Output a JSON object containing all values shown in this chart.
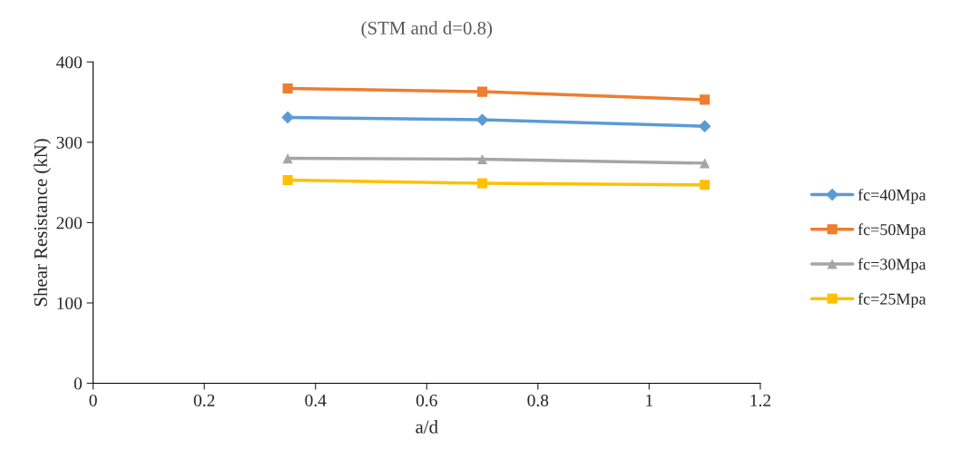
{
  "chart_data": {
    "type": "line",
    "title": "(STM and d=0.8)",
    "xlabel": "a/d",
    "ylabel": "Shear Resistance (kN)",
    "x": [
      0.35,
      0.7,
      1.1
    ],
    "series": [
      {
        "name": "fc=40Mpa",
        "color": "#5b9bd5",
        "marker": "diamond",
        "values": [
          331,
          328,
          320
        ]
      },
      {
        "name": "fc=50Mpa",
        "color": "#ed7d31",
        "marker": "square",
        "values": [
          367,
          363,
          353
        ]
      },
      {
        "name": "fc=30Mpa",
        "color": "#a5a5a5",
        "marker": "triangle",
        "values": [
          280,
          279,
          274
        ]
      },
      {
        "name": "fc=25Mpa",
        "color": "#ffc000",
        "marker": "square",
        "values": [
          253,
          249,
          247
        ]
      }
    ],
    "xlim": [
      0,
      1.2
    ],
    "xticks": [
      0,
      0.2,
      0.4,
      0.6,
      0.8,
      1,
      1.2
    ],
    "ylim": [
      0,
      400
    ],
    "yticks": [
      0,
      100,
      200,
      300,
      400
    ],
    "grid": false,
    "legend": "right",
    "line_style": "solid"
  }
}
